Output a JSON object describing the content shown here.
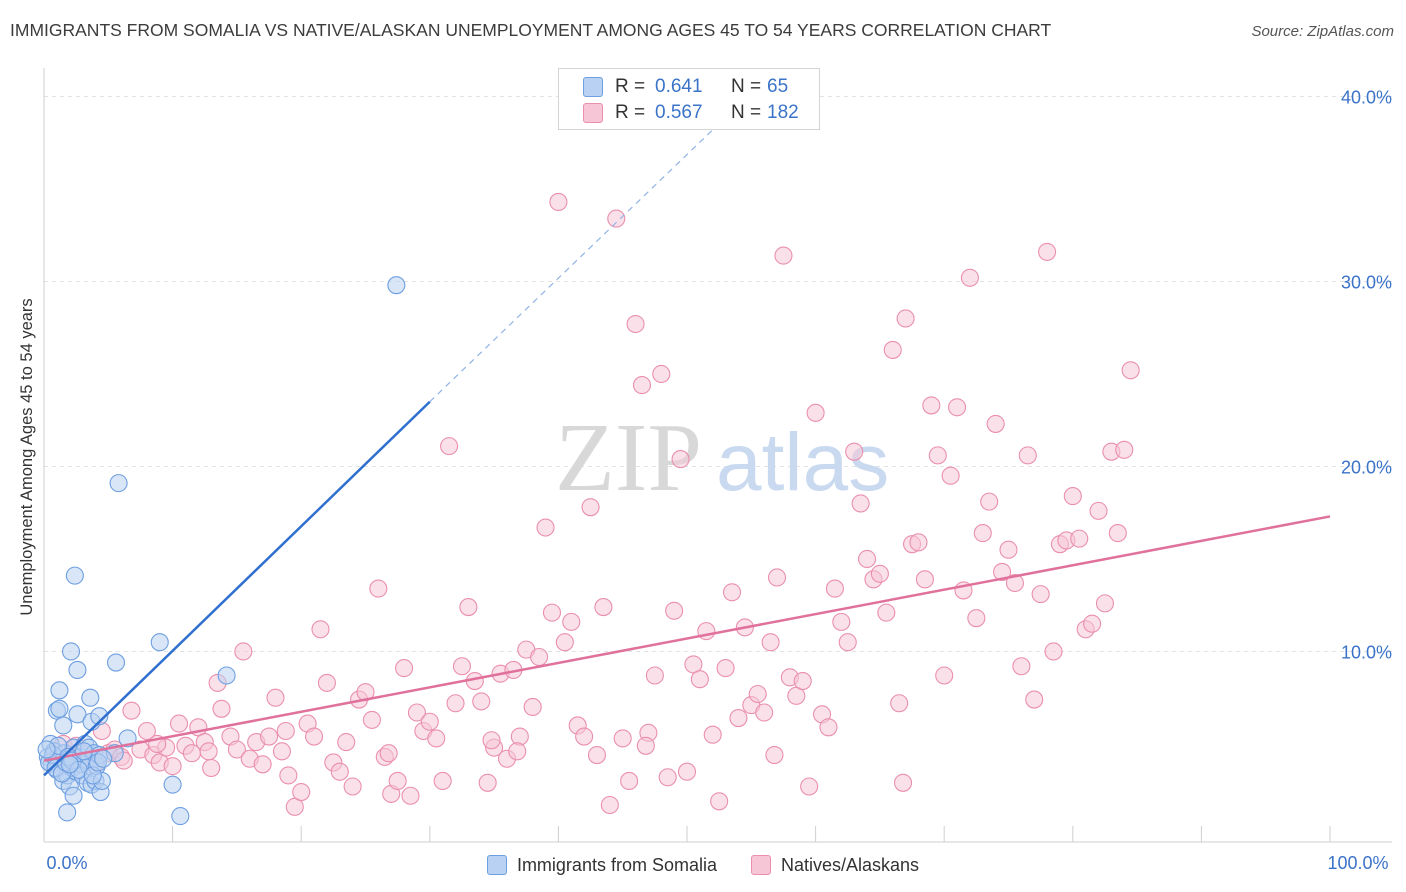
{
  "title": "IMMIGRANTS FROM SOMALIA VS NATIVE/ALASKAN UNEMPLOYMENT AMONG AGES 45 TO 54 YEARS CORRELATION CHART",
  "source": "Source: ZipAtlas.com",
  "watermark": {
    "zip": "ZIP",
    "atlas": "atlas"
  },
  "legend_box": {
    "rows": [
      {
        "r_label": "R =",
        "r_value": "0.641",
        "n_label": "N =",
        "n_value": "65"
      },
      {
        "r_label": "R =",
        "r_value": "0.567",
        "n_label": "N =",
        "n_value": "182"
      }
    ]
  },
  "chart_data": {
    "type": "scatter",
    "xlabel": "",
    "ylabel": "Unemployment Among Ages 45 to 54 years",
    "xlim": [
      0,
      100
    ],
    "ylim": [
      -0.3,
      41
    ],
    "x_ticks": [
      {
        "value": 0,
        "label": "0.0%"
      },
      {
        "value": 100,
        "label": "100.0%"
      }
    ],
    "y_ticks": [
      {
        "value": 10,
        "label": "10.0%"
      },
      {
        "value": 20,
        "label": "20.0%"
      },
      {
        "value": 30,
        "label": "30.0%"
      },
      {
        "value": 40,
        "label": "40.0%"
      }
    ],
    "grid": true,
    "legend_position": "bottom",
    "series": [
      {
        "name": "Immigrants from Somalia",
        "color": "#6e9fe0",
        "fill": "#b9d1f3",
        "line_color": "#2f6fcf",
        "trend": {
          "x0": 0,
          "y0": 3.3,
          "x1": 30,
          "y1": 23.5,
          "dash_to_x": 52,
          "dash_to_y": 38.2
        },
        "points": [
          [
            0.3,
            4.3
          ],
          [
            0.5,
            5.0
          ],
          [
            0.6,
            3.9
          ],
          [
            0.8,
            4.6
          ],
          [
            1.0,
            3.6
          ],
          [
            1.0,
            6.8
          ],
          [
            1.2,
            7.9
          ],
          [
            1.3,
            4.2
          ],
          [
            1.5,
            3.0
          ],
          [
            1.5,
            6.0
          ],
          [
            1.6,
            4.5
          ],
          [
            1.8,
            3.3
          ],
          [
            1.8,
            1.3
          ],
          [
            2.0,
            2.7
          ],
          [
            2.1,
            10.0
          ],
          [
            2.2,
            3.7
          ],
          [
            2.3,
            4.8
          ],
          [
            2.3,
            2.2
          ],
          [
            2.4,
            14.1
          ],
          [
            2.5,
            3.5
          ],
          [
            2.6,
            6.6
          ],
          [
            2.6,
            9.0
          ],
          [
            2.8,
            4.3
          ],
          [
            2.9,
            3.9
          ],
          [
            3.0,
            3.3
          ],
          [
            3.2,
            5.0
          ],
          [
            3.3,
            4.1
          ],
          [
            3.4,
            2.9
          ],
          [
            3.5,
            4.8
          ],
          [
            3.5,
            3.8
          ],
          [
            3.6,
            7.5
          ],
          [
            3.7,
            6.2
          ],
          [
            3.7,
            2.8
          ],
          [
            3.9,
            4.5
          ],
          [
            4.0,
            3.0
          ],
          [
            4.1,
            3.8
          ],
          [
            4.3,
            4.4
          ],
          [
            4.3,
            6.5
          ],
          [
            4.4,
            2.4
          ],
          [
            4.5,
            3.0
          ],
          [
            5.5,
            4.5
          ],
          [
            5.6,
            9.4
          ],
          [
            5.8,
            19.1
          ],
          [
            6.5,
            5.3
          ],
          [
            9.0,
            10.5
          ],
          [
            10.0,
            2.8
          ],
          [
            10.6,
            1.1
          ],
          [
            14.2,
            8.7
          ],
          [
            27.4,
            29.8
          ],
          [
            0.4,
            4.0
          ],
          [
            0.7,
            4.4
          ],
          [
            0.9,
            3.7
          ],
          [
            1.1,
            4.9
          ],
          [
            1.4,
            3.4
          ],
          [
            1.7,
            4.0
          ],
          [
            1.9,
            4.3
          ],
          [
            2.2,
            4.1
          ],
          [
            2.7,
            3.6
          ],
          [
            3.1,
            4.6
          ],
          [
            3.8,
            3.3
          ],
          [
            4.2,
            4.0
          ],
          [
            4.6,
            4.2
          ],
          [
            0.2,
            4.7
          ],
          [
            1.2,
            6.9
          ],
          [
            2.0,
            3.9
          ]
        ]
      },
      {
        "name": "Natives/Alaskans",
        "color": "#ea8fae",
        "fill": "#f6c6d7",
        "line_color": "#e0719a",
        "trend": {
          "x0": 0,
          "y0": 4.1,
          "x1": 100,
          "y1": 17.3
        },
        "points": [
          [
            0.8,
            4.6
          ],
          [
            1.5,
            5.0
          ],
          [
            2.0,
            4.4
          ],
          [
            2.5,
            4.9
          ],
          [
            3.0,
            4.5
          ],
          [
            4.0,
            4.0
          ],
          [
            4.5,
            5.7
          ],
          [
            5.0,
            4.5
          ],
          [
            5.5,
            4.7
          ],
          [
            6.0,
            4.3
          ],
          [
            6.8,
            6.8
          ],
          [
            7.5,
            4.7
          ],
          [
            8.0,
            5.7
          ],
          [
            8.5,
            4.4
          ],
          [
            9.0,
            4.0
          ],
          [
            9.5,
            4.8
          ],
          [
            10.0,
            3.8
          ],
          [
            10.5,
            6.1
          ],
          [
            11.0,
            4.9
          ],
          [
            11.5,
            4.5
          ],
          [
            12.0,
            5.9
          ],
          [
            12.5,
            5.1
          ],
          [
            13.0,
            3.7
          ],
          [
            13.5,
            8.3
          ],
          [
            13.8,
            6.9
          ],
          [
            14.5,
            5.4
          ],
          [
            15.0,
            4.7
          ],
          [
            15.5,
            10.0
          ],
          [
            16.0,
            4.2
          ],
          [
            16.5,
            5.1
          ],
          [
            17.0,
            3.9
          ],
          [
            17.5,
            5.4
          ],
          [
            18.0,
            7.5
          ],
          [
            18.5,
            4.6
          ],
          [
            19.0,
            3.3
          ],
          [
            19.5,
            1.6
          ],
          [
            20.0,
            2.4
          ],
          [
            20.5,
            6.1
          ],
          [
            21.0,
            5.4
          ],
          [
            21.5,
            11.2
          ],
          [
            22.0,
            8.3
          ],
          [
            22.5,
            4.0
          ],
          [
            23.0,
            3.5
          ],
          [
            23.5,
            5.1
          ],
          [
            24.0,
            2.7
          ],
          [
            24.5,
            7.4
          ],
          [
            25.0,
            7.8
          ],
          [
            25.5,
            6.3
          ],
          [
            26.0,
            13.4
          ],
          [
            26.5,
            4.3
          ],
          [
            27.0,
            2.3
          ],
          [
            27.5,
            3.0
          ],
          [
            28.0,
            9.1
          ],
          [
            28.5,
            2.2
          ],
          [
            29.0,
            6.7
          ],
          [
            29.5,
            5.7
          ],
          [
            30.0,
            6.2
          ],
          [
            30.5,
            5.3
          ],
          [
            31.0,
            3.0
          ],
          [
            31.5,
            21.1
          ],
          [
            32.0,
            7.2
          ],
          [
            32.5,
            9.2
          ],
          [
            33.0,
            12.4
          ],
          [
            33.5,
            8.4
          ],
          [
            34.0,
            7.3
          ],
          [
            34.5,
            2.9
          ],
          [
            35.0,
            4.8
          ],
          [
            35.5,
            8.8
          ],
          [
            36.0,
            4.2
          ],
          [
            36.5,
            9.0
          ],
          [
            37.0,
            5.4
          ],
          [
            37.5,
            10.1
          ],
          [
            38.0,
            7.0
          ],
          [
            38.5,
            9.7
          ],
          [
            39.0,
            16.7
          ],
          [
            39.5,
            12.1
          ],
          [
            40.0,
            34.3
          ],
          [
            40.5,
            10.5
          ],
          [
            41.0,
            11.6
          ],
          [
            41.5,
            6.0
          ],
          [
            42.0,
            5.4
          ],
          [
            42.5,
            17.8
          ],
          [
            43.0,
            4.4
          ],
          [
            43.5,
            12.4
          ],
          [
            44.0,
            1.7
          ],
          [
            44.5,
            33.4
          ],
          [
            45.0,
            5.3
          ],
          [
            45.5,
            3.0
          ],
          [
            46.0,
            27.7
          ],
          [
            46.5,
            24.4
          ],
          [
            47.0,
            5.6
          ],
          [
            47.5,
            8.7
          ],
          [
            48.0,
            25.0
          ],
          [
            48.5,
            3.2
          ],
          [
            49.0,
            12.2
          ],
          [
            49.5,
            20.4
          ],
          [
            50.0,
            3.5
          ],
          [
            50.5,
            9.3
          ],
          [
            51.0,
            8.5
          ],
          [
            51.5,
            11.1
          ],
          [
            52.0,
            5.5
          ],
          [
            52.5,
            1.9
          ],
          [
            53.0,
            9.1
          ],
          [
            53.5,
            13.2
          ],
          [
            54.0,
            6.4
          ],
          [
            54.5,
            11.3
          ],
          [
            55.0,
            7.1
          ],
          [
            55.5,
            7.7
          ],
          [
            56.0,
            6.7
          ],
          [
            56.5,
            10.5
          ],
          [
            57.0,
            14.0
          ],
          [
            57.5,
            31.4
          ],
          [
            58.0,
            8.6
          ],
          [
            58.5,
            7.6
          ],
          [
            59.0,
            8.4
          ],
          [
            59.5,
            2.7
          ],
          [
            60.0,
            22.9
          ],
          [
            60.5,
            6.6
          ],
          [
            61.0,
            5.9
          ],
          [
            61.5,
            13.4
          ],
          [
            62.0,
            11.6
          ],
          [
            62.5,
            10.5
          ],
          [
            63.0,
            20.8
          ],
          [
            63.5,
            18.0
          ],
          [
            64.0,
            15.0
          ],
          [
            64.5,
            13.9
          ],
          [
            65.0,
            14.2
          ],
          [
            65.5,
            12.1
          ],
          [
            66.0,
            26.3
          ],
          [
            66.5,
            7.2
          ],
          [
            67.0,
            28.0
          ],
          [
            67.5,
            15.8
          ],
          [
            68.0,
            15.9
          ],
          [
            68.5,
            13.9
          ],
          [
            69.0,
            23.3
          ],
          [
            69.5,
            20.6
          ],
          [
            70.0,
            8.7
          ],
          [
            70.5,
            19.5
          ],
          [
            71.0,
            23.2
          ],
          [
            71.5,
            13.3
          ],
          [
            72.0,
            30.2
          ],
          [
            72.5,
            11.8
          ],
          [
            73.0,
            16.4
          ],
          [
            73.5,
            18.1
          ],
          [
            74.0,
            22.3
          ],
          [
            74.5,
            14.3
          ],
          [
            75.0,
            15.5
          ],
          [
            75.5,
            13.7
          ],
          [
            76.0,
            9.2
          ],
          [
            76.5,
            20.6
          ],
          [
            77.0,
            7.4
          ],
          [
            77.5,
            13.1
          ],
          [
            78.0,
            31.6
          ],
          [
            78.5,
            10.0
          ],
          [
            79.0,
            15.8
          ],
          [
            79.5,
            16.0
          ],
          [
            80.0,
            18.4
          ],
          [
            80.5,
            16.1
          ],
          [
            81.0,
            11.2
          ],
          [
            81.5,
            11.5
          ],
          [
            82.0,
            17.6
          ],
          [
            82.5,
            12.6
          ],
          [
            83.0,
            20.8
          ],
          [
            83.5,
            16.4
          ],
          [
            84.0,
            20.9
          ],
          [
            84.5,
            25.2
          ],
          [
            6.2,
            4.1
          ],
          [
            8.8,
            5.0
          ],
          [
            12.8,
            4.6
          ],
          [
            18.8,
            5.7
          ],
          [
            26.8,
            4.5
          ],
          [
            34.8,
            5.2
          ],
          [
            46.8,
            4.9
          ],
          [
            56.8,
            4.4
          ],
          [
            66.8,
            2.9
          ],
          [
            36.8,
            4.6
          ]
        ]
      }
    ]
  }
}
